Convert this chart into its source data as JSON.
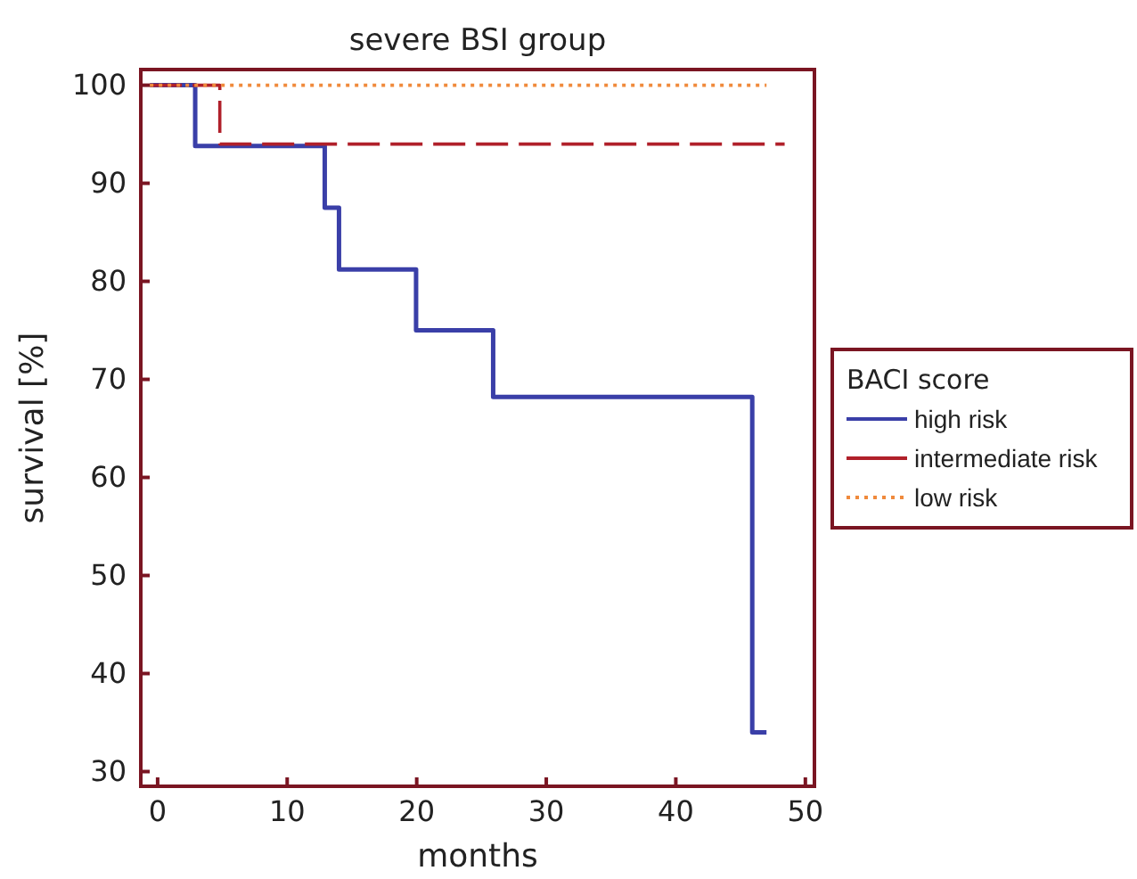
{
  "chart_data": {
    "type": "step",
    "title": "severe BSI group",
    "xlabel": "months",
    "ylabel": "survival [%]",
    "legend_title": "BACI score",
    "legend": "right",
    "xlim": [
      -1.3,
      50.7
    ],
    "ylim": [
      28.5,
      101.6
    ],
    "xticks": [
      0,
      10,
      20,
      30,
      40,
      50
    ],
    "yticks": [
      30,
      40,
      50,
      60,
      70,
      80,
      90,
      100
    ],
    "series": [
      {
        "name": "high risk",
        "color": "#3a3fa8",
        "line_style": "solid",
        "x": [
          -0.6,
          2.9,
          12.9,
          14,
          19.95,
          25.9,
          45.9,
          47
        ],
        "values": [
          100,
          93.8,
          87.5,
          81.2,
          75,
          68.2,
          34,
          34
        ]
      },
      {
        "name": "intermediate risk",
        "color": "#b0202a",
        "line_style": "dashed",
        "x": [
          -0.6,
          4.8,
          48.4
        ],
        "values": [
          100,
          94,
          94
        ]
      },
      {
        "name": "low risk",
        "color": "#f08a3c",
        "line_style": "dotted",
        "x": [
          -0.6,
          47
        ],
        "values": [
          100,
          100
        ]
      }
    ]
  }
}
